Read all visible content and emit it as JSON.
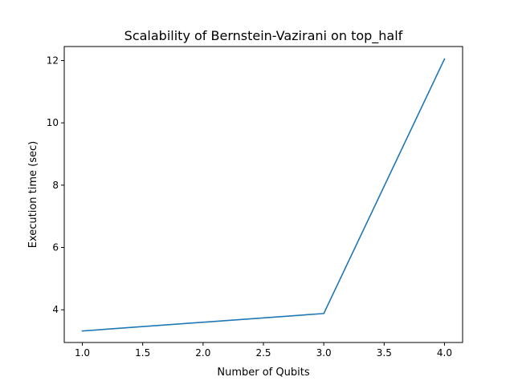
{
  "chart_data": {
    "type": "line",
    "title": "Scalability of Bernstein-Vazirani on top_half",
    "xlabel": "Number of Qubits",
    "ylabel": "Execution time (sec)",
    "x": [
      1,
      3,
      4
    ],
    "series": [
      {
        "values": [
          3.32,
          3.88,
          12.05
        ],
        "color": "#1f77b4"
      }
    ],
    "xlim": [
      0.85,
      4.15
    ],
    "ylim": [
      2.95,
      12.45
    ],
    "xticks": [
      1.0,
      1.5,
      2.0,
      2.5,
      3.0,
      3.5,
      4.0
    ],
    "xtick_labels": [
      "1.0",
      "1.5",
      "2.0",
      "2.5",
      "3.0",
      "3.5",
      "4.0"
    ],
    "yticks": [
      4,
      6,
      8,
      10,
      12
    ],
    "ytick_labels": [
      "4",
      "6",
      "8",
      "10",
      "12"
    ],
    "grid": false,
    "legend": false
  }
}
